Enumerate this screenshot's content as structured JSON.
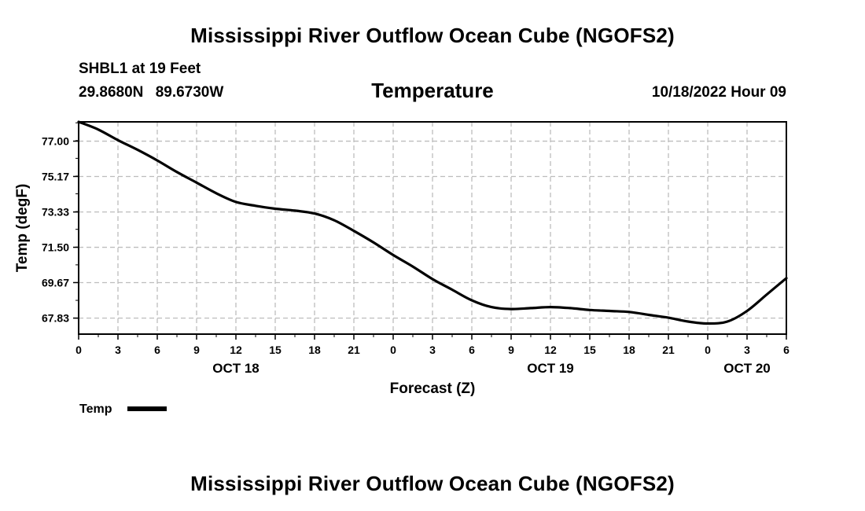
{
  "page": {
    "title": "Mississippi River Outflow Ocean Cube (NGOFS2)",
    "title_repeat": "Mississippi River Outflow Ocean Cube (NGOFS2)"
  },
  "station": {
    "name": "SHBL1 at 19 Feet",
    "lat": "29.8680N",
    "lon": "89.6730W"
  },
  "header": {
    "chart_title": "Temperature",
    "datetime": "10/18/2022 Hour 09"
  },
  "colors": {
    "line": "#000000",
    "grid": "#bdbdbd",
    "frame": "#000000",
    "background": "#ffffff"
  },
  "chart_data": {
    "type": "line",
    "title": "Temperature",
    "xlabel": "Forecast (Z)",
    "ylabel": "Temp (degF)",
    "xlim": [
      0,
      54
    ],
    "ylim": [
      67.0,
      78.0
    ],
    "y_ticks": [
      67.83,
      69.67,
      71.5,
      73.33,
      75.17,
      77.0
    ],
    "y_tick_labels": [
      "67.83",
      "69.67",
      "71.50",
      "73.33",
      "75.17",
      "77.00"
    ],
    "x_ticks": [
      0,
      3,
      6,
      9,
      12,
      15,
      18,
      21,
      24,
      27,
      30,
      33,
      36,
      39,
      42,
      45,
      48,
      51,
      54
    ],
    "x_tick_labels": [
      "0",
      "3",
      "6",
      "9",
      "12",
      "15",
      "18",
      "21",
      "0",
      "3",
      "6",
      "9",
      "12",
      "15",
      "18",
      "21",
      "0",
      "3",
      "6"
    ],
    "date_labels": [
      {
        "x": 12,
        "label": "OCT 18"
      },
      {
        "x": 36,
        "label": "OCT 19"
      },
      {
        "x": 51,
        "label": "OCT 20"
      }
    ],
    "grid": true,
    "legend": {
      "position": "bottom-left",
      "label": "Temp"
    },
    "series": [
      {
        "name": "Temp",
        "x": [
          0,
          1.5,
          3,
          4.5,
          6,
          7.5,
          9,
          10.5,
          12,
          13.5,
          15,
          16.5,
          18,
          19.5,
          21,
          22.5,
          24,
          25.5,
          27,
          28.5,
          30,
          31.5,
          33,
          34.5,
          36,
          37.5,
          39,
          40.5,
          42,
          43.5,
          45,
          46.5,
          48,
          49.5,
          51,
          52.5,
          54
        ],
        "values": [
          78.0,
          77.6,
          77.05,
          76.55,
          76.0,
          75.4,
          74.85,
          74.3,
          73.85,
          73.65,
          73.5,
          73.4,
          73.25,
          72.9,
          72.35,
          71.75,
          71.1,
          70.5,
          69.85,
          69.3,
          68.75,
          68.4,
          68.3,
          68.35,
          68.4,
          68.35,
          68.25,
          68.2,
          68.15,
          68.0,
          67.85,
          67.65,
          67.55,
          67.65,
          68.2,
          69.05,
          69.9
        ]
      }
    ]
  }
}
